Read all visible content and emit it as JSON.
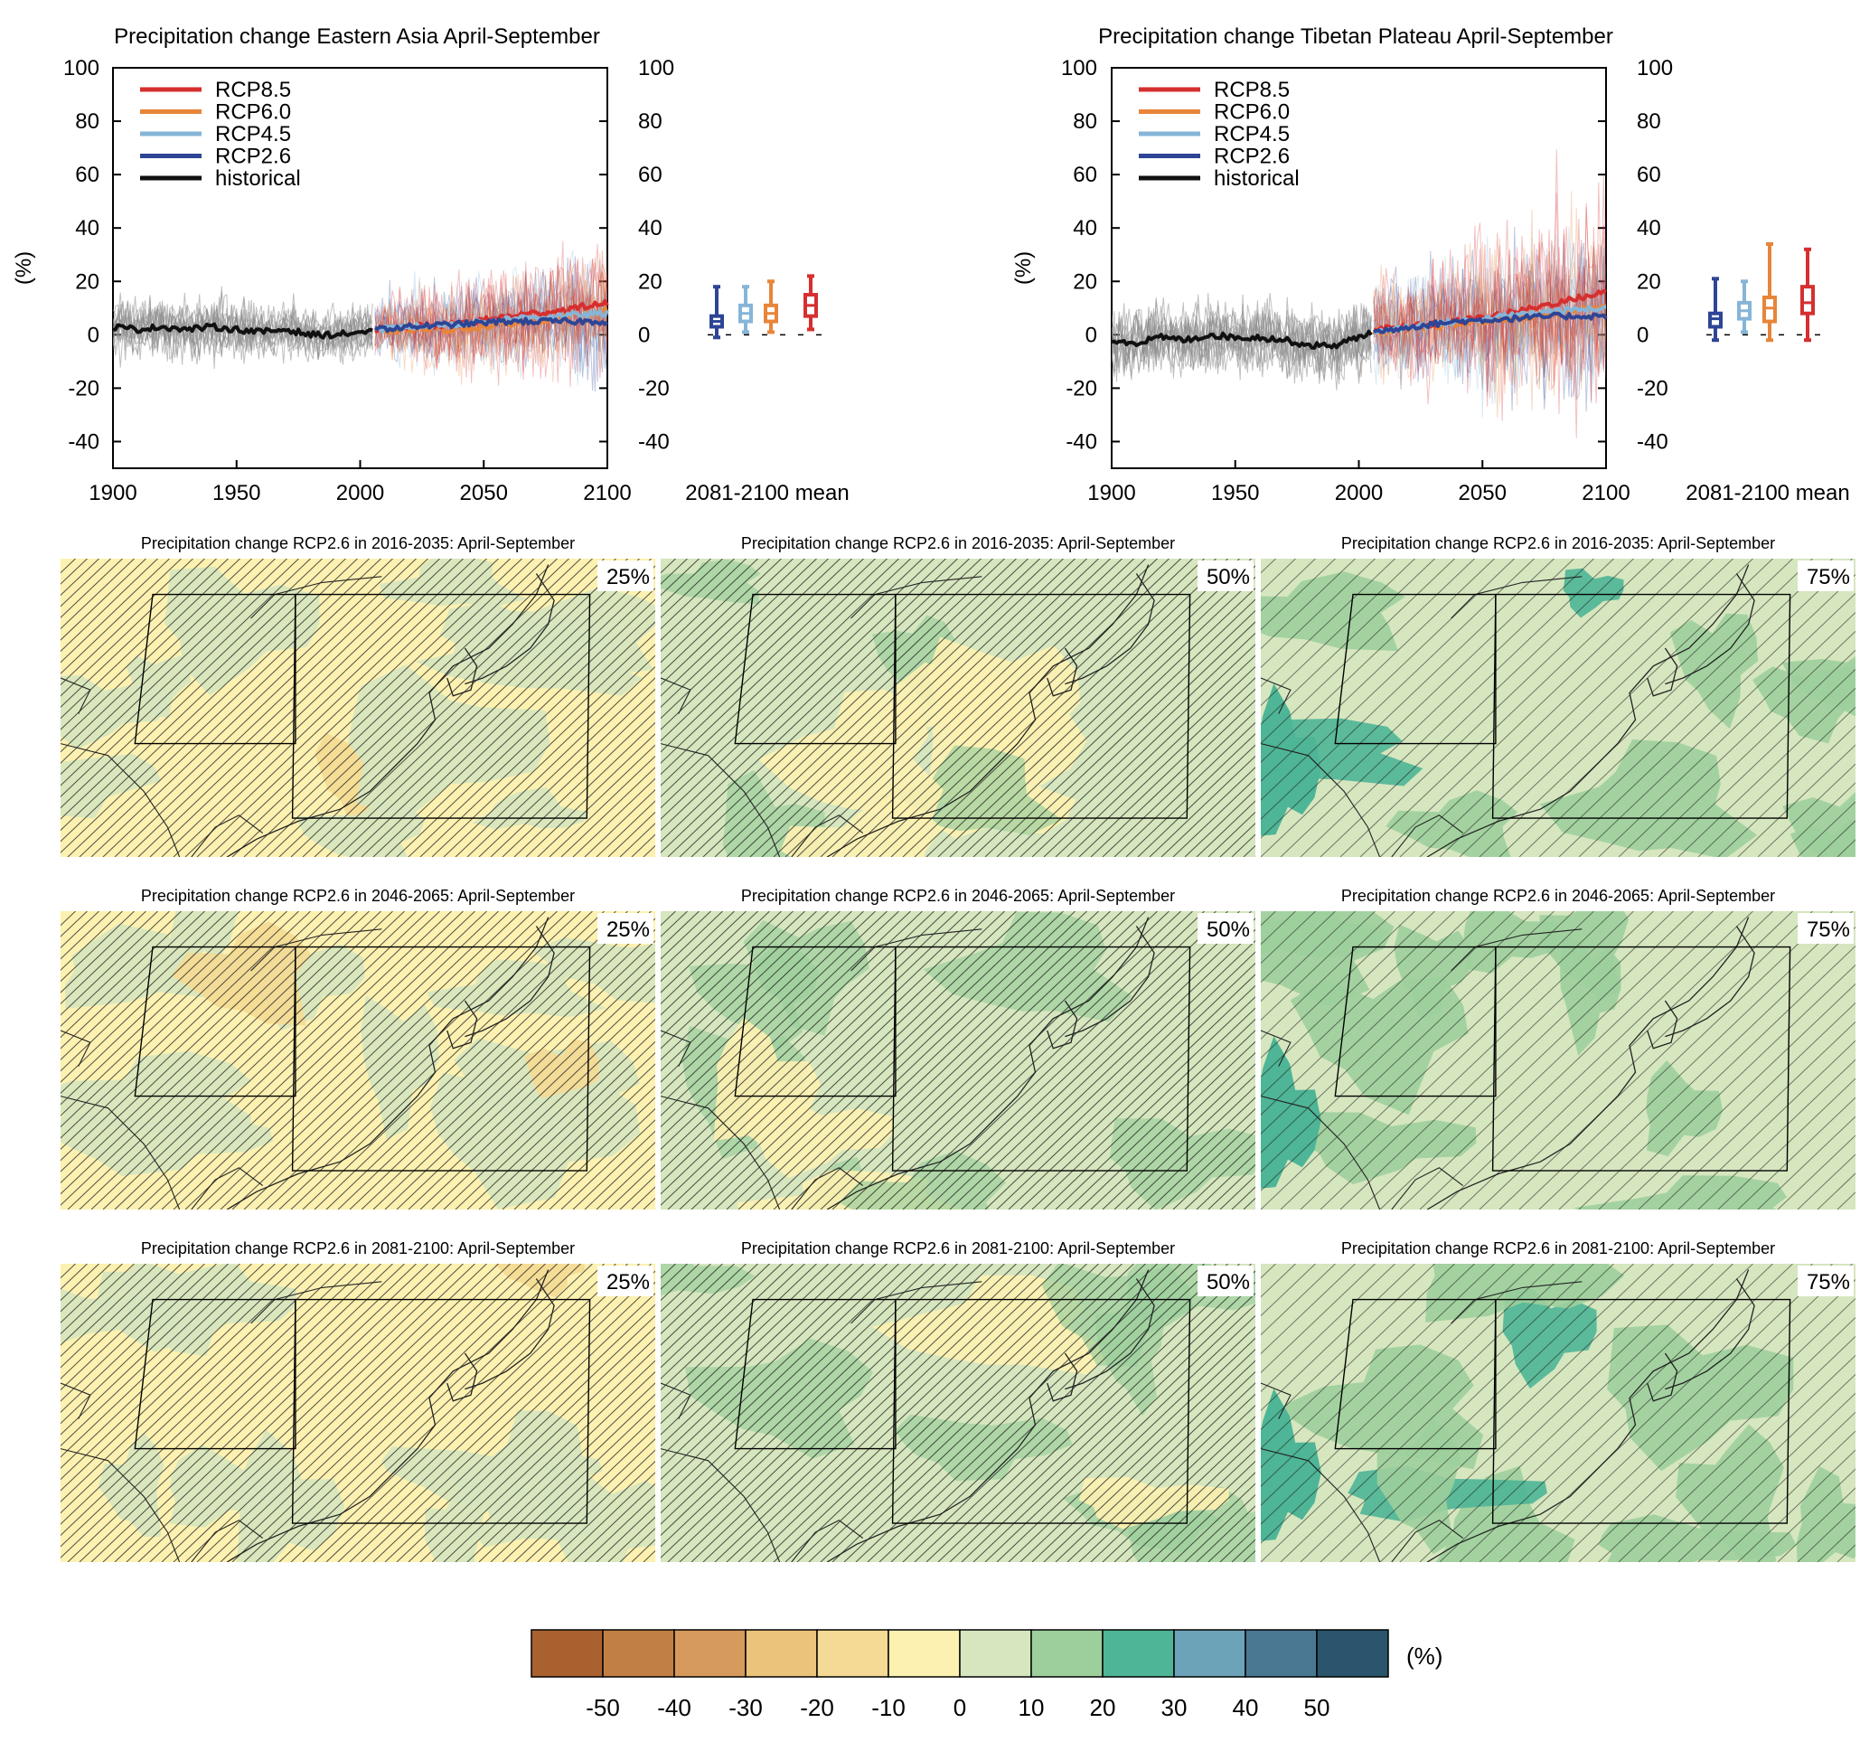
{
  "colors": {
    "RCP8.5": "#d62f2f",
    "RCP6.0": "#e8853a",
    "RCP4.5": "#86b5d8",
    "RCP2.6": "#2e4595",
    "historical": "#111111",
    "ensemble_hist": "#8c8c8c"
  },
  "colorbar": {
    "unit": "(%)",
    "ticks": [
      "-50",
      "-40",
      "-30",
      "-20",
      "-10",
      "0",
      "10",
      "20",
      "30",
      "40",
      "50"
    ],
    "colors": [
      "#a9622f",
      "#c27f43",
      "#d69a5c",
      "#ecc37a",
      "#f4da94",
      "#fdf1b1",
      "#d6e6bf",
      "#9dcf9c",
      "#4eb596",
      "#6da3b8",
      "#4a7893",
      "#2a556d"
    ]
  },
  "chart_data": [
    {
      "type": "line",
      "title": "Precipitation change Eastern Asia April-September",
      "ylabel": "(%)",
      "xlim": [
        1900,
        2100
      ],
      "ylim": [
        -50,
        100
      ],
      "xticks": [
        "1900",
        "1950",
        "2000",
        "2050",
        "2100"
      ],
      "yticks": [
        "-40",
        "-20",
        "0",
        "20",
        "40",
        "60",
        "80",
        "100"
      ],
      "legend": [
        "RCP8.5",
        "RCP6.0",
        "RCP4.5",
        "RCP2.6",
        "historical"
      ],
      "legend_position": "top-left",
      "series": [
        {
          "name": "historical",
          "x": [
            1900,
            1910,
            1920,
            1930,
            1940,
            1950,
            1960,
            1970,
            1980,
            1990,
            2000,
            2005
          ],
          "values": [
            3,
            2,
            3,
            2,
            3,
            2,
            1,
            2,
            0,
            0,
            1,
            1
          ]
        },
        {
          "name": "RCP2.6",
          "x": [
            2006,
            2020,
            2040,
            2060,
            2080,
            2100
          ],
          "values": [
            2,
            3,
            4,
            5,
            5,
            5
          ]
        },
        {
          "name": "RCP4.5",
          "x": [
            2006,
            2020,
            2040,
            2060,
            2080,
            2100
          ],
          "values": [
            2,
            3,
            4,
            6,
            7,
            8
          ]
        },
        {
          "name": "RCP6.0",
          "x": [
            2006,
            2020,
            2040,
            2060,
            2080,
            2100
          ],
          "values": [
            1,
            2,
            2,
            4,
            6,
            9
          ]
        },
        {
          "name": "RCP8.5",
          "x": [
            2006,
            2020,
            2040,
            2060,
            2080,
            2100
          ],
          "values": [
            2,
            3,
            4,
            7,
            9,
            12
          ]
        }
      ],
      "boxplots": {
        "label": "2081-2100 mean",
        "items": [
          {
            "name": "RCP2.6",
            "min": -1,
            "q1": 3,
            "median": 5,
            "q3": 7,
            "max": 18
          },
          {
            "name": "RCP4.5",
            "min": 1,
            "q1": 5,
            "median": 8,
            "q3": 11,
            "max": 18
          },
          {
            "name": "RCP6.0",
            "min": 1,
            "q1": 5,
            "median": 8,
            "q3": 11,
            "max": 20
          },
          {
            "name": "RCP8.5",
            "min": 2,
            "q1": 7,
            "median": 11,
            "q3": 15,
            "max": 22
          }
        ]
      }
    },
    {
      "type": "line",
      "title": "Precipitation change Tibetan Plateau April-September",
      "ylabel": "(%)",
      "xlim": [
        1900,
        2100
      ],
      "ylim": [
        -50,
        100
      ],
      "xticks": [
        "1900",
        "1950",
        "2000",
        "2050",
        "2100"
      ],
      "yticks": [
        "-40",
        "-20",
        "0",
        "20",
        "40",
        "60",
        "80",
        "100"
      ],
      "legend": [
        "RCP8.5",
        "RCP6.0",
        "RCP4.5",
        "RCP2.6",
        "historical"
      ],
      "legend_position": "top-left",
      "series": [
        {
          "name": "historical",
          "x": [
            1900,
            1910,
            1920,
            1930,
            1940,
            1950,
            1960,
            1970,
            1980,
            1990,
            2000,
            2005
          ],
          "values": [
            -2,
            -3,
            -1,
            -2,
            0,
            -1,
            -1,
            -2,
            -4,
            -4,
            -1,
            1
          ]
        },
        {
          "name": "RCP2.6",
          "x": [
            2006,
            2020,
            2040,
            2060,
            2080,
            2100
          ],
          "values": [
            1,
            3,
            5,
            6,
            7,
            7
          ]
        },
        {
          "name": "RCP4.5",
          "x": [
            2006,
            2020,
            2040,
            2060,
            2080,
            2100
          ],
          "values": [
            1,
            3,
            5,
            7,
            9,
            10
          ]
        },
        {
          "name": "RCP6.0",
          "x": [
            2006,
            2020,
            2040,
            2060,
            2080,
            2100
          ],
          "values": [
            1,
            2,
            4,
            6,
            8,
            11
          ]
        },
        {
          "name": "RCP8.5",
          "x": [
            2006,
            2020,
            2040,
            2060,
            2080,
            2100
          ],
          "values": [
            2,
            3,
            5,
            8,
            12,
            16
          ]
        }
      ],
      "boxplots": {
        "label": "2081-2100 mean",
        "items": [
          {
            "name": "RCP2.6",
            "min": -2,
            "q1": 3,
            "median": 6,
            "q3": 8,
            "max": 21
          },
          {
            "name": "RCP4.5",
            "min": 1,
            "q1": 6,
            "median": 9,
            "q3": 12,
            "max": 20
          },
          {
            "name": "RCP6.0",
            "min": -2,
            "q1": 5,
            "median": 10,
            "q3": 14,
            "max": 34
          },
          {
            "name": "RCP8.5",
            "min": -2,
            "q1": 8,
            "median": 12,
            "q3": 18,
            "max": 32
          }
        ]
      }
    },
    {
      "type": "heatmap",
      "panels": [
        {
          "title": "Precipitation change RCP2.6 in 2016-2035: April-September",
          "percentile": "25%",
          "dominant_class": "-10 to 0"
        },
        {
          "title": "Precipitation change RCP2.6 in 2016-2035: April-September",
          "percentile": "50%",
          "dominant_class": "0 to 10"
        },
        {
          "title": "Precipitation change RCP2.6 in 2016-2035: April-September",
          "percentile": "75%",
          "dominant_class": "0 to 20"
        },
        {
          "title": "Precipitation change RCP2.6 in 2046-2065: April-September",
          "percentile": "25%",
          "dominant_class": "-10 to 10"
        },
        {
          "title": "Precipitation change RCP2.6 in 2046-2065: April-September",
          "percentile": "50%",
          "dominant_class": "0 to 10"
        },
        {
          "title": "Precipitation change RCP2.6 in 2046-2065: April-September",
          "percentile": "75%",
          "dominant_class": "0 to 20"
        },
        {
          "title": "Precipitation change RCP2.6 in 2081-2100: April-September",
          "percentile": "25%",
          "dominant_class": "-10 to 10"
        },
        {
          "title": "Precipitation change RCP2.6 in 2081-2100: April-September",
          "percentile": "50%",
          "dominant_class": "0 to 10"
        },
        {
          "title": "Precipitation change RCP2.6 in 2081-2100: April-September",
          "percentile": "75%",
          "dominant_class": "0 to 20"
        }
      ]
    }
  ]
}
